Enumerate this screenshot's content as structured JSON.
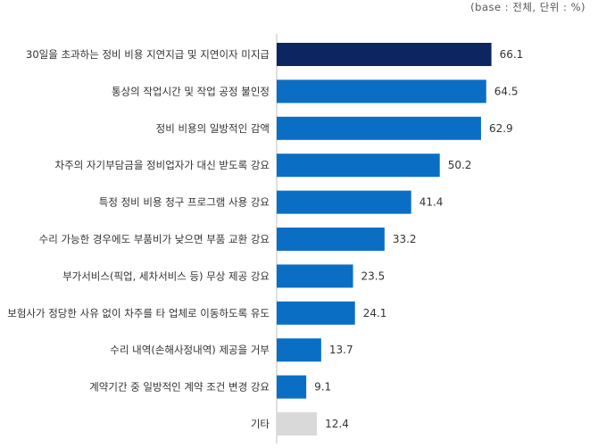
{
  "base_note": "(base : 전체, 단위 : %)",
  "chart_data": {
    "type": "bar",
    "orientation": "horizontal",
    "categories": [
      "30일을 초과하는 정비 비용 지연지급 및 지연이자 미지급",
      "통상의 작업시간 및 작업 공정 불인정",
      "정비 비용의 일방적인 감액",
      "차주의 자기부담금을 정비업자가 대신 받도록 강요",
      "특정 정비 비용 청구 프로그램 사용 강요",
      "수리 가능한 경우에도 부품비가 낮으면 부품 교환 강요",
      "부가서비스(픽업, 세차서비스 등) 무상 제공 강요",
      "보험사가 정당한 사유 없이 차주를 타 업체로 이동하도록 유도",
      "수리 내역(손해사정내역) 제공을 거부",
      "계약기간 중 일방적인 계약 조건 변경 강요",
      "기타"
    ],
    "values": [
      66.1,
      64.5,
      62.9,
      50.2,
      41.4,
      33.2,
      23.5,
      24.1,
      13.7,
      9.1,
      12.4
    ],
    "colors": [
      "#0d2560",
      "#0a6fc4",
      "#0a6fc4",
      "#0a6fc4",
      "#0a6fc4",
      "#0a6fc4",
      "#0a6fc4",
      "#0a6fc4",
      "#0a6fc4",
      "#0a6fc4",
      "#d9d9d9"
    ],
    "value_labels": [
      "66.1",
      "64.5",
      "62.9",
      "50.2",
      "41.4",
      "33.2",
      "23.5",
      "24.1",
      "13.7",
      "9.1",
      "12.4"
    ],
    "title": "",
    "xlabel": "",
    "ylabel": "",
    "xlim": [
      0,
      100
    ],
    "grid": false,
    "legend": "none"
  }
}
